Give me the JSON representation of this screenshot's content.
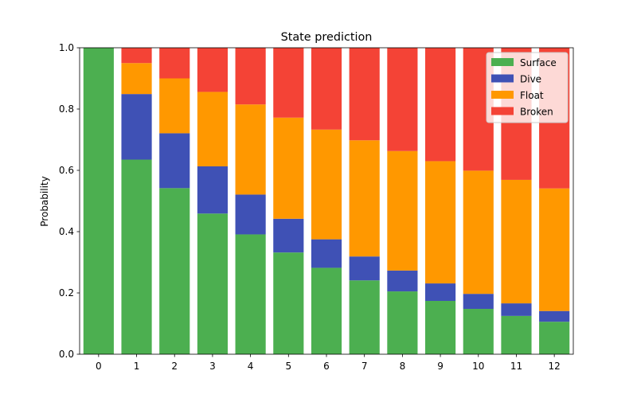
{
  "chart_data": {
    "type": "bar",
    "stacked": true,
    "title": "State prediction",
    "xlabel": "",
    "ylabel": "Probability",
    "ylim": [
      0,
      1
    ],
    "yticks": [
      "0.0",
      "0.2",
      "0.4",
      "0.6",
      "0.8",
      "1.0"
    ],
    "categories": [
      "0",
      "1",
      "2",
      "3",
      "4",
      "5",
      "6",
      "7",
      "8",
      "9",
      "10",
      "11",
      "12"
    ],
    "legend_position": "top-right",
    "grid": false,
    "series": [
      {
        "name": "Surface",
        "color": "#4caf50",
        "values": [
          1.0,
          0.635,
          0.542,
          0.459,
          0.391,
          0.332,
          0.282,
          0.241,
          0.205,
          0.174,
          0.148,
          0.125,
          0.106
        ]
      },
      {
        "name": "Dive",
        "color": "#3f51b5",
        "values": [
          0.0,
          0.214,
          0.179,
          0.154,
          0.13,
          0.11,
          0.093,
          0.078,
          0.068,
          0.057,
          0.049,
          0.041,
          0.035
        ]
      },
      {
        "name": "Float",
        "color": "#ff9800",
        "values": [
          0.0,
          0.101,
          0.179,
          0.243,
          0.294,
          0.33,
          0.358,
          0.379,
          0.39,
          0.399,
          0.402,
          0.403,
          0.4
        ]
      },
      {
        "name": "Broken",
        "color": "#f44336",
        "values": [
          0.0,
          0.05,
          0.1,
          0.144,
          0.185,
          0.228,
          0.267,
          0.302,
          0.337,
          0.37,
          0.401,
          0.431,
          0.459
        ]
      }
    ]
  }
}
